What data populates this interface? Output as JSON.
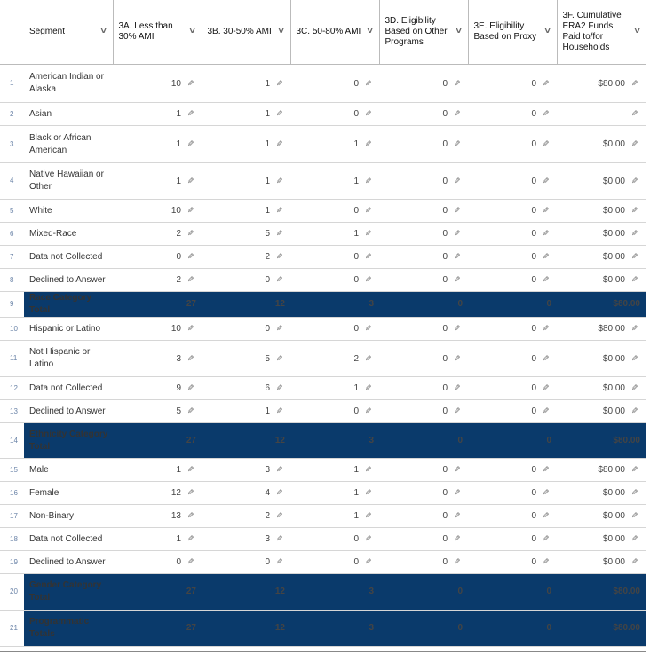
{
  "columns": [
    {
      "label": "Segment"
    },
    {
      "label": "3A. Less than 30% AMI"
    },
    {
      "label": "3B. 30-50% AMI"
    },
    {
      "label": "3C. 50-80% AMI"
    },
    {
      "label": "3D. Eligibility Based on Other Programs"
    },
    {
      "label": "3E. Eligibility Based on Proxy"
    },
    {
      "label": "3F. Cumulative ERA2 Funds Paid to/for Households"
    }
  ],
  "icons": {
    "sort": "chevron-down-icon",
    "edit": "pencil-icon"
  },
  "colors": {
    "total_row_bg": "#0a3a6b"
  },
  "rows": [
    {
      "num": "1",
      "segment": "American Indian or Alaska",
      "values": [
        "10",
        "1",
        "0",
        "0",
        "0",
        "$80.00"
      ],
      "total": false
    },
    {
      "num": "2",
      "segment": "Asian",
      "values": [
        "1",
        "1",
        "0",
        "0",
        "0",
        ""
      ],
      "total": false
    },
    {
      "num": "3",
      "segment": "Black or African American",
      "values": [
        "1",
        "1",
        "1",
        "0",
        "0",
        "$0.00"
      ],
      "total": false
    },
    {
      "num": "4",
      "segment": "Native Hawaiian or Other",
      "values": [
        "1",
        "1",
        "1",
        "0",
        "0",
        "$0.00"
      ],
      "total": false
    },
    {
      "num": "5",
      "segment": "White",
      "values": [
        "10",
        "1",
        "0",
        "0",
        "0",
        "$0.00"
      ],
      "total": false
    },
    {
      "num": "6",
      "segment": "Mixed-Race",
      "values": [
        "2",
        "5",
        "1",
        "0",
        "0",
        "$0.00"
      ],
      "total": false
    },
    {
      "num": "7",
      "segment": "Data not Collected",
      "values": [
        "0",
        "2",
        "0",
        "0",
        "0",
        "$0.00"
      ],
      "total": false
    },
    {
      "num": "8",
      "segment": "Declined to Answer",
      "values": [
        "2",
        "0",
        "0",
        "0",
        "0",
        "$0.00"
      ],
      "total": false
    },
    {
      "num": "9",
      "segment": "Race Category Total",
      "values": [
        "27",
        "12",
        "3",
        "0",
        "0",
        "$80.00"
      ],
      "total": true
    },
    {
      "num": "10",
      "segment": "Hispanic or Latino",
      "values": [
        "10",
        "0",
        "0",
        "0",
        "0",
        "$80.00"
      ],
      "total": false
    },
    {
      "num": "11",
      "segment": "Not Hispanic or Latino",
      "values": [
        "3",
        "5",
        "2",
        "0",
        "0",
        "$0.00"
      ],
      "total": false
    },
    {
      "num": "12",
      "segment": "Data not Collected",
      "values": [
        "9",
        "6",
        "1",
        "0",
        "0",
        "$0.00"
      ],
      "total": false
    },
    {
      "num": "13",
      "segment": "Declined to Answer",
      "values": [
        "5",
        "1",
        "0",
        "0",
        "0",
        "$0.00"
      ],
      "total": false
    },
    {
      "num": "14",
      "segment": "Ethnicity Category Total",
      "values": [
        "27",
        "12",
        "3",
        "0",
        "0",
        "$80.00"
      ],
      "total": true
    },
    {
      "num": "15",
      "segment": "Male",
      "values": [
        "1",
        "3",
        "1",
        "0",
        "0",
        "$80.00"
      ],
      "total": false
    },
    {
      "num": "16",
      "segment": "Female",
      "values": [
        "12",
        "4",
        "1",
        "0",
        "0",
        "$0.00"
      ],
      "total": false
    },
    {
      "num": "17",
      "segment": "Non-Binary",
      "values": [
        "13",
        "2",
        "1",
        "0",
        "0",
        "$0.00"
      ],
      "total": false
    },
    {
      "num": "18",
      "segment": "Data not Collected",
      "values": [
        "1",
        "3",
        "0",
        "0",
        "0",
        "$0.00"
      ],
      "total": false
    },
    {
      "num": "19",
      "segment": "Declined to Answer",
      "values": [
        "0",
        "0",
        "0",
        "0",
        "0",
        "$0.00"
      ],
      "total": false
    },
    {
      "num": "20",
      "segment": "Gender Category Total",
      "values": [
        "27",
        "12",
        "3",
        "0",
        "0",
        "$80.00"
      ],
      "total": true
    },
    {
      "num": "21",
      "segment": "Programmatic Totals",
      "values": [
        "27",
        "12",
        "3",
        "0",
        "0",
        "$80.00"
      ],
      "total": true
    }
  ]
}
